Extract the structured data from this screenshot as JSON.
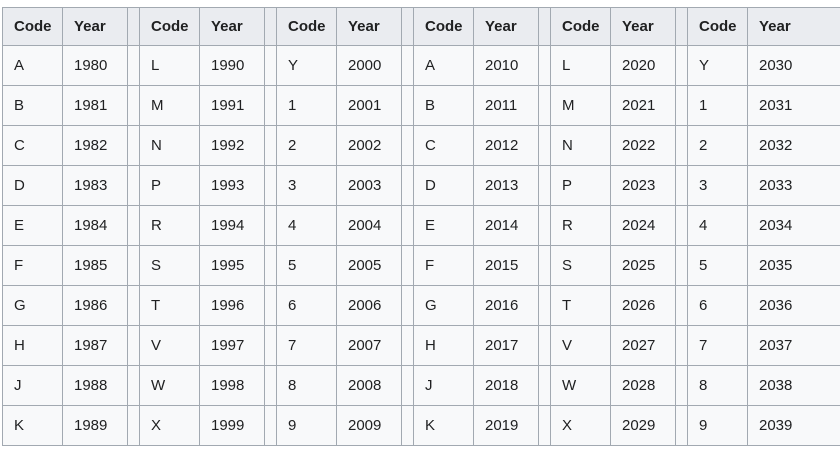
{
  "colors": {
    "border": "#a2a9b1",
    "header_bg": "#eaecf0",
    "cell_bg": "#f8f9fa",
    "text": "#202122",
    "page_bg": "#ffffff"
  },
  "table": {
    "header": {
      "code": "Code",
      "year": "Year"
    },
    "group_count": 6,
    "rows": [
      [
        {
          "code": "A",
          "year": "1980"
        },
        {
          "code": "L",
          "year": "1990"
        },
        {
          "code": "Y",
          "year": "2000"
        },
        {
          "code": "A",
          "year": "2010"
        },
        {
          "code": "L",
          "year": "2020"
        },
        {
          "code": "Y",
          "year": "2030"
        }
      ],
      [
        {
          "code": "B",
          "year": "1981"
        },
        {
          "code": "M",
          "year": "1991"
        },
        {
          "code": "1",
          "year": "2001"
        },
        {
          "code": "B",
          "year": "2011"
        },
        {
          "code": "M",
          "year": "2021"
        },
        {
          "code": "1",
          "year": "2031"
        }
      ],
      [
        {
          "code": "C",
          "year": "1982"
        },
        {
          "code": "N",
          "year": "1992"
        },
        {
          "code": "2",
          "year": "2002"
        },
        {
          "code": "C",
          "year": "2012"
        },
        {
          "code": "N",
          "year": "2022"
        },
        {
          "code": "2",
          "year": "2032"
        }
      ],
      [
        {
          "code": "D",
          "year": "1983"
        },
        {
          "code": "P",
          "year": "1993"
        },
        {
          "code": "3",
          "year": "2003"
        },
        {
          "code": "D",
          "year": "2013"
        },
        {
          "code": "P",
          "year": "2023"
        },
        {
          "code": "3",
          "year": "2033"
        }
      ],
      [
        {
          "code": "E",
          "year": "1984"
        },
        {
          "code": "R",
          "year": "1994"
        },
        {
          "code": "4",
          "year": "2004"
        },
        {
          "code": "E",
          "year": "2014"
        },
        {
          "code": "R",
          "year": "2024"
        },
        {
          "code": "4",
          "year": "2034"
        }
      ],
      [
        {
          "code": "F",
          "year": "1985"
        },
        {
          "code": "S",
          "year": "1995"
        },
        {
          "code": "5",
          "year": "2005"
        },
        {
          "code": "F",
          "year": "2015"
        },
        {
          "code": "S",
          "year": "2025"
        },
        {
          "code": "5",
          "year": "2035"
        }
      ],
      [
        {
          "code": "G",
          "year": "1986"
        },
        {
          "code": "T",
          "year": "1996"
        },
        {
          "code": "6",
          "year": "2006"
        },
        {
          "code": "G",
          "year": "2016"
        },
        {
          "code": "T",
          "year": "2026"
        },
        {
          "code": "6",
          "year": "2036"
        }
      ],
      [
        {
          "code": "H",
          "year": "1987"
        },
        {
          "code": "V",
          "year": "1997"
        },
        {
          "code": "7",
          "year": "2007"
        },
        {
          "code": "H",
          "year": "2017"
        },
        {
          "code": "V",
          "year": "2027"
        },
        {
          "code": "7",
          "year": "2037"
        }
      ],
      [
        {
          "code": "J",
          "year": "1988"
        },
        {
          "code": "W",
          "year": "1998"
        },
        {
          "code": "8",
          "year": "2008"
        },
        {
          "code": "J",
          "year": "2018"
        },
        {
          "code": "W",
          "year": "2028"
        },
        {
          "code": "8",
          "year": "2038"
        }
      ],
      [
        {
          "code": "K",
          "year": "1989"
        },
        {
          "code": "X",
          "year": "1999"
        },
        {
          "code": "9",
          "year": "2009"
        },
        {
          "code": "K",
          "year": "2019"
        },
        {
          "code": "X",
          "year": "2029"
        },
        {
          "code": "9",
          "year": "2039"
        }
      ]
    ]
  }
}
